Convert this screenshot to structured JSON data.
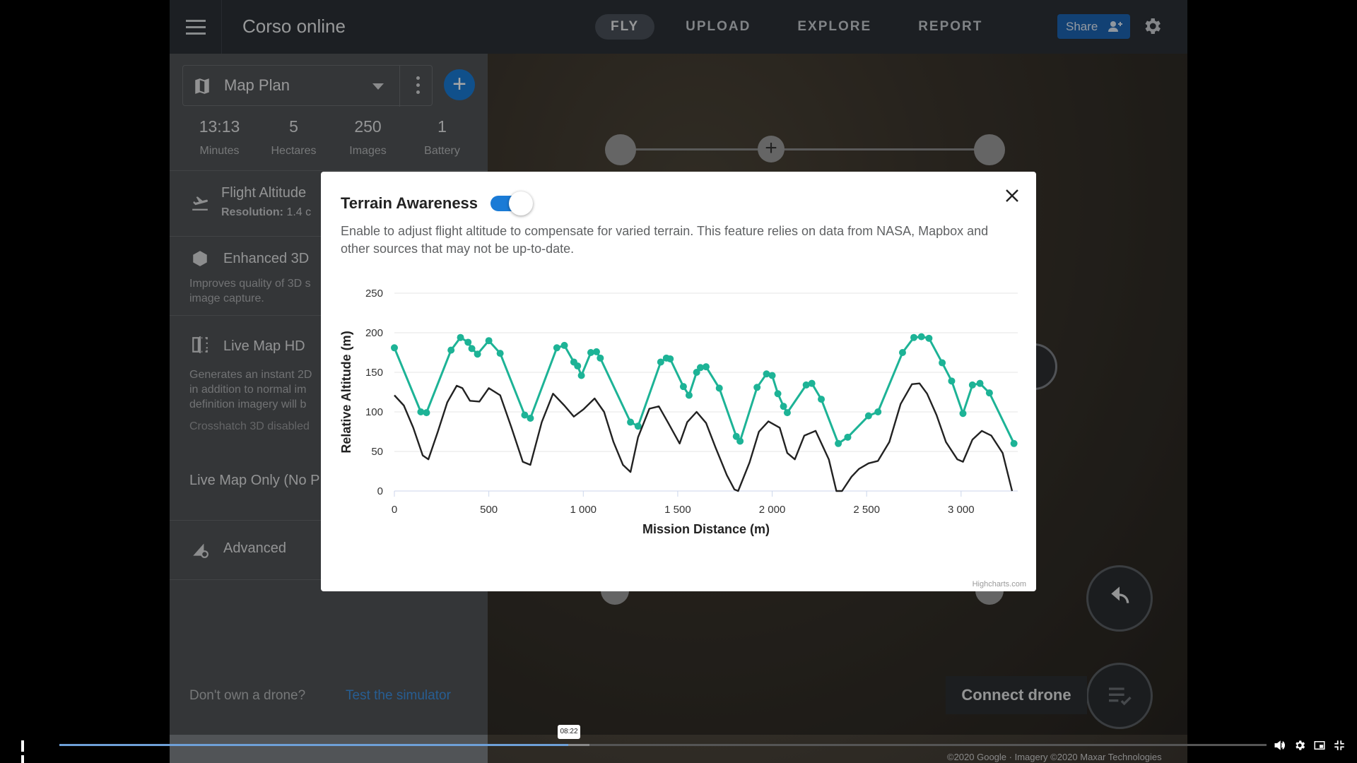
{
  "app": {
    "title": "Corso online"
  },
  "nav": {
    "tabs": [
      {
        "label": "FLY",
        "active": true
      },
      {
        "label": "UPLOAD"
      },
      {
        "label": "EXPLORE"
      },
      {
        "label": "REPORT"
      }
    ]
  },
  "header": {
    "share_label": "Share"
  },
  "sidebar": {
    "plan_name": "Map Plan",
    "stats": [
      {
        "value": "13:13",
        "label": "Minutes"
      },
      {
        "value": "5",
        "label": "Hectares"
      },
      {
        "value": "250",
        "label": "Images"
      },
      {
        "value": "1",
        "label": "Battery"
      }
    ],
    "flight_altitude": {
      "title": "Flight Altitude",
      "resolution_label": "Resolution:",
      "resolution_value": "1.4 c"
    },
    "enhanced_3d": {
      "title": "Enhanced 3D",
      "desc_1": "Improves quality of 3D s",
      "desc_2": "image capture."
    },
    "live_map_hd": {
      "title": "Live Map HD",
      "desc_1": "Generates an instant 2D",
      "desc_2": "in addition to normal im",
      "desc_3": "definition imagery will b",
      "note": "Crosshatch 3D disabled"
    },
    "live_map_only": {
      "title": "Live Map Only (No P"
    },
    "advanced": {
      "title": "Advanced"
    },
    "drone_question": "Don't own a drone?",
    "simulator_link": "Test the simulator"
  },
  "map": {
    "connect_label": "Connect drone",
    "attribution": "©2020 Google · Imagery ©2020 Maxar Technologies"
  },
  "modal": {
    "title": "Terrain Awareness",
    "toggle_on": true,
    "description": "Enable to adjust flight altitude to compensate for varied terrain. This feature relies on data from NASA, Mapbox and other sources that may not be up-to-date.",
    "credit": "Highcharts.com"
  },
  "chart_data": {
    "type": "line",
    "xlabel": "Mission Distance (m)",
    "ylabel": "Relative Altitude (m)",
    "xlim": [
      0,
      3300
    ],
    "ylim": [
      0,
      250
    ],
    "xticks": [
      "0",
      "500",
      "1 000",
      "1 500",
      "2 000",
      "2 500",
      "3 000"
    ],
    "yticks": [
      "0",
      "50",
      "100",
      "150",
      "200",
      "250"
    ],
    "colors": {
      "flight": "#1db396",
      "terrain": "#222222"
    },
    "series": [
      {
        "key": "flight",
        "markers": true,
        "x": [
          0,
          140,
          170,
          300,
          350,
          390,
          410,
          440,
          500,
          560,
          690,
          720,
          860,
          900,
          950,
          970,
          990,
          1040,
          1070,
          1090,
          1250,
          1290,
          1410,
          1440,
          1460,
          1530,
          1560,
          1600,
          1620,
          1650,
          1720,
          1810,
          1830,
          1920,
          1970,
          2000,
          2030,
          2060,
          2080,
          2180,
          2210,
          2260,
          2350,
          2400,
          2510,
          2560,
          2690,
          2750,
          2790,
          2830,
          2900,
          2950,
          3010,
          3060,
          3100,
          3150,
          3280
        ],
        "values": [
          181,
          100,
          99,
          178,
          194,
          188,
          180,
          173,
          190,
          174,
          96,
          92,
          181,
          184,
          163,
          158,
          146,
          175,
          176,
          168,
          87,
          82,
          163,
          168,
          167,
          132,
          121,
          150,
          156,
          157,
          130,
          69,
          63,
          131,
          148,
          146,
          123,
          107,
          99,
          134,
          136,
          116,
          60,
          68,
          95,
          100,
          175,
          194,
          195,
          193,
          162,
          139,
          98,
          134,
          136,
          124,
          60
        ]
      },
      {
        "key": "terrain",
        "markers": false,
        "x": [
          0,
          50,
          100,
          150,
          180,
          230,
          280,
          330,
          360,
          400,
          450,
          500,
          560,
          620,
          680,
          720,
          780,
          840,
          900,
          950,
          1000,
          1060,
          1110,
          1160,
          1210,
          1250,
          1290,
          1350,
          1400,
          1450,
          1510,
          1550,
          1600,
          1650,
          1700,
          1760,
          1800,
          1820,
          1880,
          1930,
          1980,
          2040,
          2080,
          2120,
          2170,
          2230,
          2300,
          2340,
          2370,
          2420,
          2460,
          2510,
          2560,
          2620,
          2680,
          2740,
          2780,
          2820,
          2870,
          2920,
          2980,
          3010,
          3060,
          3110,
          3160,
          3220,
          3270
        ],
        "values": [
          121,
          108,
          80,
          45,
          40,
          75,
          112,
          133,
          130,
          114,
          113,
          130,
          121,
          80,
          37,
          33,
          87,
          123,
          108,
          94,
          103,
          117,
          100,
          62,
          33,
          24,
          68,
          104,
          107,
          86,
          60,
          87,
          100,
          86,
          55,
          20,
          2,
          0,
          36,
          75,
          88,
          80,
          48,
          40,
          70,
          76,
          40,
          0,
          0,
          18,
          28,
          35,
          38,
          62,
          110,
          135,
          136,
          123,
          96,
          62,
          40,
          37,
          65,
          76,
          70,
          48,
          0
        ]
      }
    ]
  }
}
